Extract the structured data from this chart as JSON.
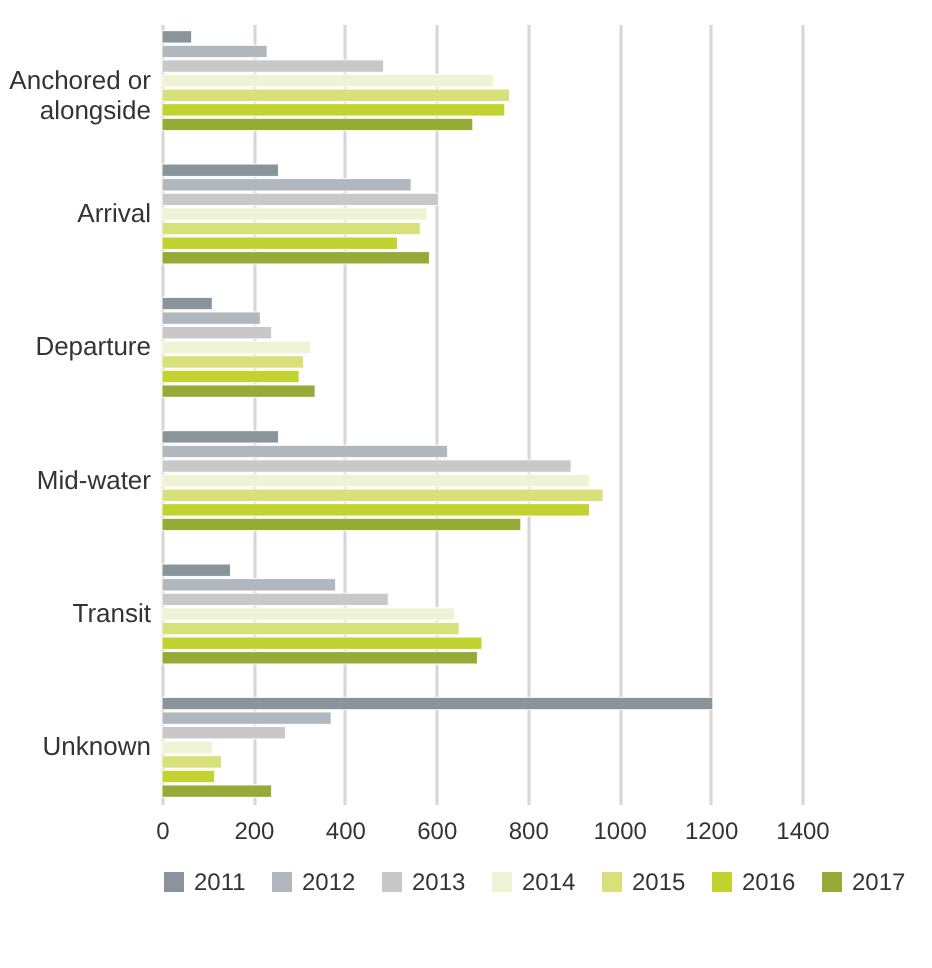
{
  "chart_data": {
    "type": "bar",
    "orientation": "horizontal",
    "categories": [
      "Anchored or alongside",
      "Arrival",
      "Departure",
      "Mid-water",
      "Transit",
      "Unknown"
    ],
    "series": [
      {
        "name": "2011",
        "color": "#8a959b",
        "values": [
          65,
          255,
          110,
          255,
          150,
          1205
        ]
      },
      {
        "name": "2012",
        "color": "#b0b8bd",
        "values": [
          230,
          545,
          215,
          625,
          380,
          370
        ]
      },
      {
        "name": "2013",
        "color": "#c8c8c8",
        "values": [
          485,
          605,
          240,
          895,
          495,
          270
        ]
      },
      {
        "name": "2014",
        "color": "#eef3d5",
        "values": [
          725,
          580,
          325,
          935,
          640,
          110
        ]
      },
      {
        "name": "2015",
        "color": "#d8e07a",
        "values": [
          760,
          565,
          310,
          965,
          650,
          130
        ]
      },
      {
        "name": "2016",
        "color": "#c2d22e",
        "values": [
          750,
          515,
          300,
          935,
          700,
          115
        ]
      },
      {
        "name": "2017",
        "color": "#95ab38",
        "values": [
          680,
          585,
          335,
          785,
          690,
          240
        ]
      }
    ],
    "xlim": [
      0,
      1400
    ],
    "xticks": [
      0,
      200,
      400,
      600,
      800,
      1000,
      1200,
      1400
    ],
    "grid": "x",
    "legend": "bottom"
  }
}
